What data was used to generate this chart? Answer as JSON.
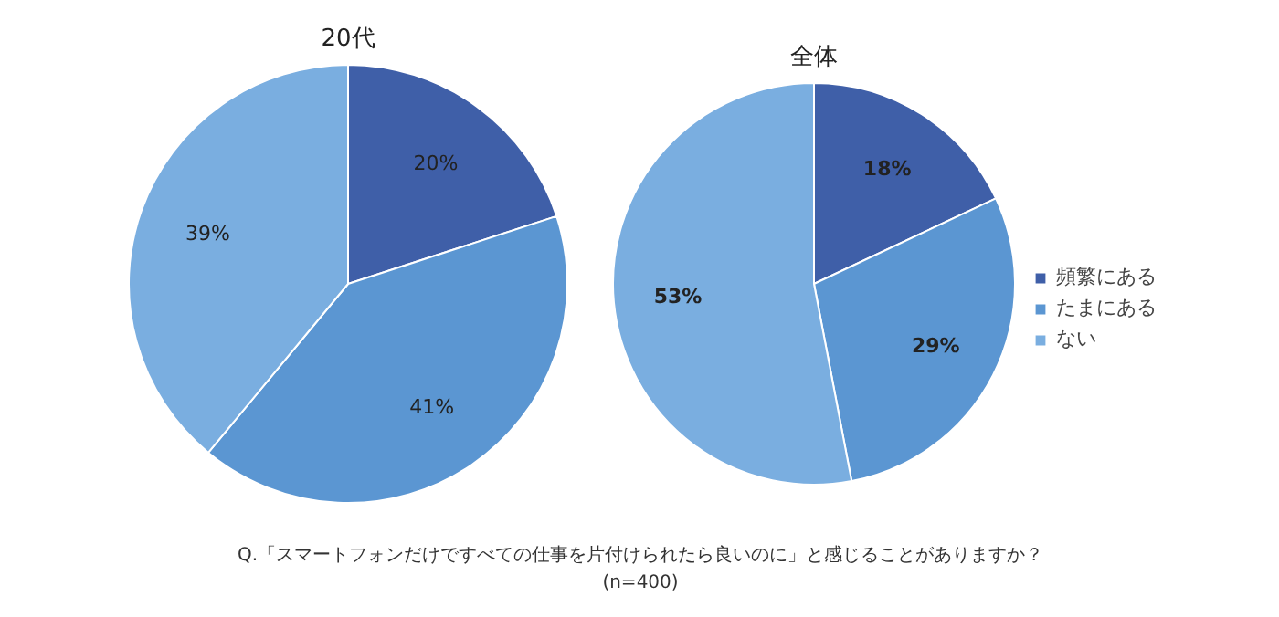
{
  "chart_data": [
    {
      "type": "pie",
      "title": "20代",
      "values": [
        20,
        41,
        39
      ],
      "value_labels": [
        "20%",
        "41%",
        "39%"
      ],
      "colors": [
        "#3f5fa8",
        "#5b96d2",
        "#7aaee0"
      ]
    },
    {
      "type": "pie",
      "title": "全体",
      "categories": [
        "頻繁にある",
        "たまにある",
        "ない"
      ],
      "values": [
        18,
        29,
        53
      ],
      "value_labels": [
        "18%",
        "29%",
        "53%"
      ],
      "colors": [
        "#3f5fa8",
        "#5b96d2",
        "#7aaee0"
      ],
      "legend": "right",
      "annotations": [
        "Q.「スマートフォンだけですべての仕事を片付けられたら良いのに」と感じることがありますか？",
        "(n=400)"
      ]
    }
  ]
}
